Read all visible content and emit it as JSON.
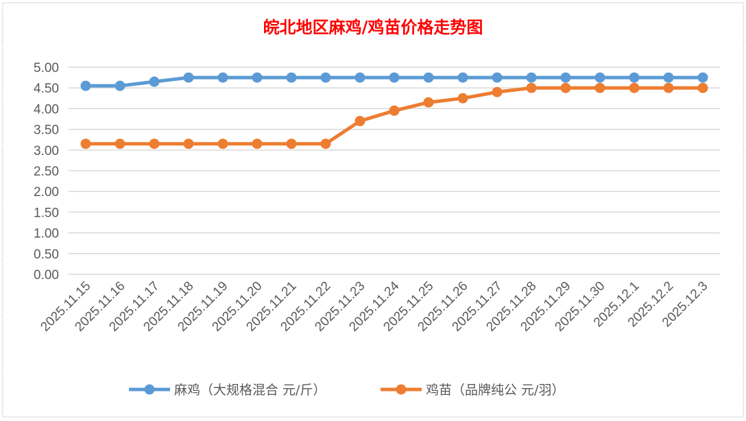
{
  "chart_data": {
    "type": "line",
    "title": "皖北地区麻鸡/鸡苗价格走势图",
    "xlabel": "",
    "ylabel": "",
    "ylim": [
      0,
      5
    ],
    "yticks": [
      "0.00",
      "0.50",
      "1.00",
      "1.50",
      "2.00",
      "2.50",
      "3.00",
      "3.50",
      "4.00",
      "4.50",
      "5.00"
    ],
    "grid": true,
    "legend_position": "bottom",
    "categories": [
      "2025.11.15",
      "2025.11.16",
      "2025.11.17",
      "2025.11.18",
      "2025.11.19",
      "2025.11.20",
      "2025.11.21",
      "2025.11.22",
      "2025.11.23",
      "2025.11.24",
      "2025.11.25",
      "2025.11.26",
      "2025.11.27",
      "2025.11.28",
      "2025.11.29",
      "2025.11.30",
      "2025.12.1",
      "2025.12.2",
      "2025.12.3"
    ],
    "series": [
      {
        "name": "麻鸡（大规格混合 元/斤）",
        "color": "#5b9bd5",
        "values": [
          4.55,
          4.55,
          4.65,
          4.75,
          4.75,
          4.75,
          4.75,
          4.75,
          4.75,
          4.75,
          4.75,
          4.75,
          4.75,
          4.75,
          4.75,
          4.75,
          4.75,
          4.75,
          4.75
        ]
      },
      {
        "name": "鸡苗（品牌纯公 元/羽）",
        "color": "#ed7d31",
        "values": [
          3.15,
          3.15,
          3.15,
          3.15,
          3.15,
          3.15,
          3.15,
          3.15,
          3.7,
          3.95,
          4.15,
          4.25,
          4.4,
          4.5,
          4.5,
          4.5,
          4.5,
          4.5,
          4.5
        ]
      }
    ]
  }
}
